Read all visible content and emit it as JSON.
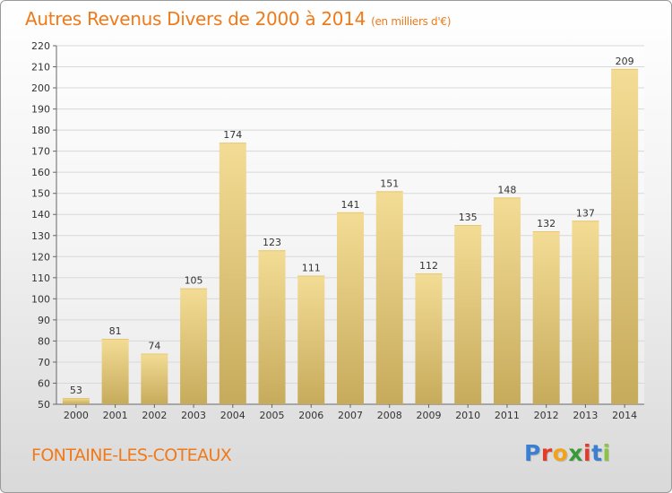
{
  "title": "Autres Revenus Divers de 2000 à 2014",
  "unit_note": "(en milliers d'€)",
  "commune": "FONTAINE-LES-COTEAUX",
  "logo": {
    "letters": [
      "P",
      "r",
      "o",
      "x",
      "i",
      "t",
      "i"
    ],
    "colors": [
      "#3a7fd0",
      "#e33a2a",
      "#f2a31b",
      "#3a9a3a",
      "#e33a2a",
      "#3a7fd0",
      "#8bc53f"
    ]
  },
  "colors": {
    "title": "#f07a1a",
    "bar_light": "#f3dc95",
    "bar_dark": "#c7ab5c",
    "grid": "#d8d8d8"
  },
  "chart_data": {
    "type": "bar",
    "title": "Autres Revenus Divers de 2000 à 2014",
    "subtitle": "(en milliers d'€)",
    "xlabel": "",
    "ylabel": "",
    "categories": [
      "2000",
      "2001",
      "2002",
      "2003",
      "2004",
      "2005",
      "2006",
      "2007",
      "2008",
      "2009",
      "2010",
      "2011",
      "2012",
      "2013",
      "2014"
    ],
    "values": [
      53,
      81,
      74,
      105,
      174,
      123,
      111,
      141,
      151,
      112,
      135,
      148,
      132,
      137,
      209
    ],
    "ylim": [
      50,
      220
    ],
    "yticks": [
      50,
      60,
      70,
      80,
      90,
      100,
      110,
      120,
      130,
      140,
      150,
      160,
      170,
      180,
      190,
      200,
      210,
      220
    ],
    "grid": true,
    "data_labels": true
  }
}
